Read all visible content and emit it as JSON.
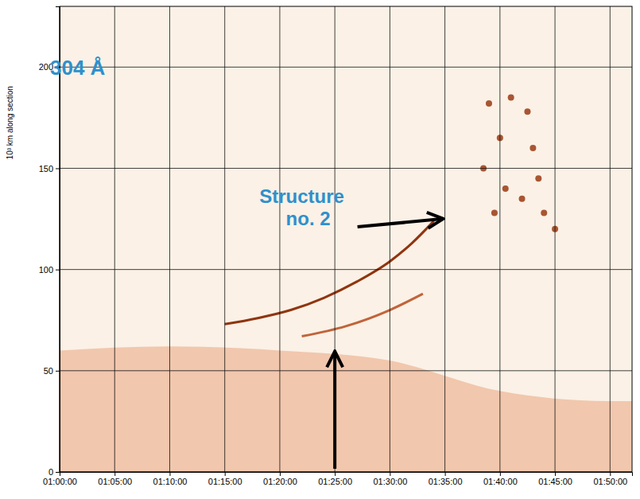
{
  "chart_data": {
    "type": "line",
    "title": "304 Å",
    "y_label": "10³ km along section",
    "xlim": [
      "01:00:00",
      "01:52:00"
    ],
    "xticks": [
      "01:00:00",
      "01:05:00",
      "01:10:00",
      "01:15:00",
      "01:20:00",
      "01:25:00",
      "01:30:00",
      "01:35:00",
      "01:40:00",
      "01:45:00",
      "01:50:00"
    ],
    "ylim": [
      0,
      230
    ],
    "yticks": [
      0,
      50,
      100,
      150,
      200
    ],
    "grid": true,
    "series": [
      {
        "type": "area",
        "color": "#e9a47e",
        "x": [
          "01:00:00",
          "01:10:00",
          "01:20:00",
          "01:30:00",
          "01:40:00",
          "01:50:00",
          "01:52:00"
        ],
        "values": [
          60,
          62,
          60,
          55,
          40,
          35,
          35
        ]
      },
      {
        "type": "line",
        "color": "#8f3510",
        "x": [
          "01:15:00",
          "01:18:00",
          "01:21:00",
          "01:24:00",
          "01:27:00",
          "01:30:00",
          "01:32:00",
          "01:34:00"
        ],
        "values": [
          73,
          76,
          80,
          86,
          94,
          104,
          113,
          124
        ]
      },
      {
        "type": "line",
        "color": "#c0643a",
        "x": [
          "01:22:00",
          "01:26:00",
          "01:30:00",
          "01:33:00"
        ],
        "values": [
          67,
          72,
          80,
          88
        ]
      },
      {
        "type": "scatter",
        "color": "#9a3a12",
        "marker": "circle",
        "x": [
          "01:39:00",
          "01:41:00",
          "01:42:30",
          "01:40:00",
          "01:43:00",
          "01:38:30",
          "01:40:30",
          "01:42:00",
          "01:44:00",
          "01:45:00",
          "01:39:30",
          "01:43:30"
        ],
        "values": [
          182,
          185,
          178,
          165,
          160,
          150,
          140,
          135,
          128,
          120,
          128,
          145
        ]
      }
    ],
    "annotations": [
      {
        "text": "Structure no. 2",
        "x": "01:35:00",
        "y": 125
      },
      {
        "x": "01:25:00",
        "y": 60
      }
    ]
  }
}
